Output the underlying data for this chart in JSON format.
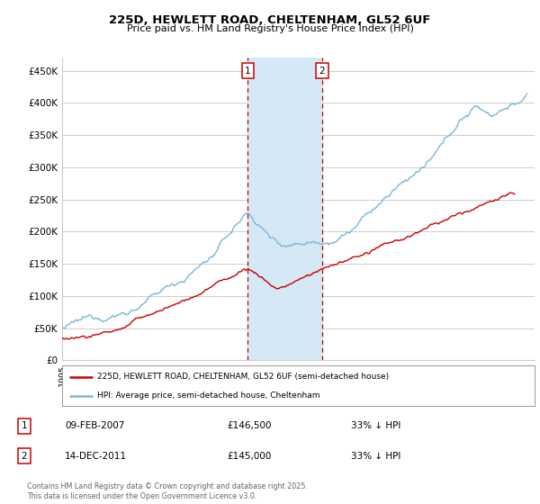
{
  "title": "225D, HEWLETT ROAD, CHELTENHAM, GL52 6UF",
  "subtitle": "Price paid vs. HM Land Registry's House Price Index (HPI)",
  "ylabel_ticks": [
    "£0",
    "£50K",
    "£100K",
    "£150K",
    "£200K",
    "£250K",
    "£300K",
    "£350K",
    "£400K",
    "£450K"
  ],
  "ytick_values": [
    0,
    50000,
    100000,
    150000,
    200000,
    250000,
    300000,
    350000,
    400000,
    450000
  ],
  "ylim": [
    0,
    470000
  ],
  "xlim_start": 1995.0,
  "xlim_end": 2025.8,
  "hpi_color": "#7ab8d9",
  "price_color": "#cc0000",
  "vline1_x": 2007.1,
  "vline2_x": 2011.95,
  "vline_color": "#cc0000",
  "shade_color": "#d4e8f5",
  "transaction1_date": "09-FEB-2007",
  "transaction1_price": "£146,500",
  "transaction1_hpi": "33% ↓ HPI",
  "transaction2_date": "14-DEC-2011",
  "transaction2_price": "£145,000",
  "transaction2_hpi": "33% ↓ HPI",
  "legend_property": "225D, HEWLETT ROAD, CHELTENHAM, GL52 6UF (semi-detached house)",
  "legend_hpi": "HPI: Average price, semi-detached house, Cheltenham",
  "footnote": "Contains HM Land Registry data © Crown copyright and database right 2025.\nThis data is licensed under the Open Government Licence v3.0.",
  "background_color": "#ffffff",
  "grid_color": "#cccccc"
}
